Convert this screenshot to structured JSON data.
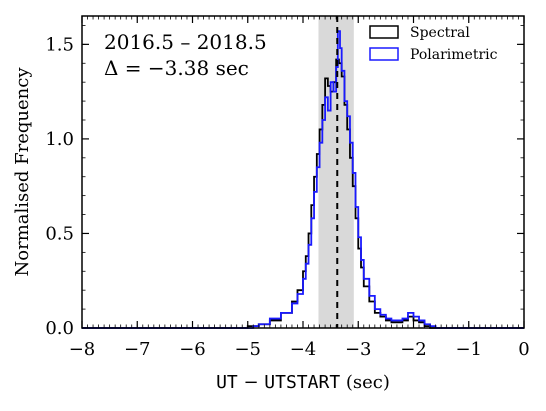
{
  "chart_data": {
    "type": "histogram",
    "xlabel_parts": [
      "UT",
      " − ",
      "UTSTART",
      " (sec)"
    ],
    "ylabel": "Normalised Frequency",
    "xlim": [
      -8,
      0
    ],
    "ylim": [
      0,
      1.65
    ],
    "x_ticks": [
      -8,
      -7,
      -6,
      -5,
      -4,
      -3,
      -2,
      -1,
      0
    ],
    "x_tick_labels": [
      "−8",
      "−7",
      "−6",
      "−5",
      "−4",
      "−3",
      "−2",
      "−1",
      "0"
    ],
    "y_ticks": [
      0.0,
      0.5,
      1.0,
      1.5
    ],
    "y_tick_labels": [
      "0.0",
      "0.5",
      "1.0",
      "1.5"
    ],
    "annotations": {
      "date_range": "2016.5 – 2018.5",
      "delta": "Δ = −3.38 sec"
    },
    "median_line_x": -3.38,
    "shaded_band": [
      -3.72,
      -3.08
    ],
    "legend_position": "top-right",
    "legend": [
      {
        "name": "Spectral",
        "color": "#000000"
      },
      {
        "name": "Polarimetric",
        "color": "#1a1aff"
      }
    ],
    "series": [
      {
        "name": "Spectral",
        "color": "#000000",
        "points": [
          [
            -8.0,
            0.0
          ],
          [
            -5.2,
            0.0
          ],
          [
            -5.0,
            0.01
          ],
          [
            -4.8,
            0.02
          ],
          [
            -4.6,
            0.04
          ],
          [
            -4.4,
            0.08
          ],
          [
            -4.2,
            0.14
          ],
          [
            -4.1,
            0.2
          ],
          [
            -4.0,
            0.3
          ],
          [
            -3.95,
            0.38
          ],
          [
            -3.9,
            0.5
          ],
          [
            -3.85,
            0.65
          ],
          [
            -3.8,
            0.8
          ],
          [
            -3.75,
            0.92
          ],
          [
            -3.7,
            1.05
          ],
          [
            -3.65,
            1.18
          ],
          [
            -3.6,
            1.32
          ],
          [
            -3.55,
            1.28
          ],
          [
            -3.5,
            1.25
          ],
          [
            -3.45,
            1.3
          ],
          [
            -3.4,
            1.42
          ],
          [
            -3.35,
            1.4
          ],
          [
            -3.3,
            1.33
          ],
          [
            -3.25,
            1.18
          ],
          [
            -3.2,
            1.05
          ],
          [
            -3.15,
            0.9
          ],
          [
            -3.1,
            0.75
          ],
          [
            -3.05,
            0.58
          ],
          [
            -3.0,
            0.42
          ],
          [
            -2.95,
            0.32
          ],
          [
            -2.9,
            0.22
          ],
          [
            -2.8,
            0.14
          ],
          [
            -2.7,
            0.08
          ],
          [
            -2.6,
            0.06
          ],
          [
            -2.5,
            0.04
          ],
          [
            -2.4,
            0.03
          ],
          [
            -2.2,
            0.04
          ],
          [
            -2.1,
            0.06
          ],
          [
            -2.0,
            0.04
          ],
          [
            -1.9,
            0.03
          ],
          [
            -1.8,
            0.01
          ],
          [
            -1.7,
            0.0
          ],
          [
            0.0,
            0.0
          ]
        ]
      },
      {
        "name": "Polarimetric",
        "color": "#1a1aff",
        "points": [
          [
            -8.0,
            0.0
          ],
          [
            -5.0,
            0.0
          ],
          [
            -4.9,
            0.01
          ],
          [
            -4.8,
            0.02
          ],
          [
            -4.6,
            0.05
          ],
          [
            -4.4,
            0.08
          ],
          [
            -4.2,
            0.13
          ],
          [
            -4.1,
            0.18
          ],
          [
            -4.0,
            0.26
          ],
          [
            -3.95,
            0.34
          ],
          [
            -3.9,
            0.44
          ],
          [
            -3.85,
            0.58
          ],
          [
            -3.8,
            0.72
          ],
          [
            -3.75,
            0.85
          ],
          [
            -3.7,
            0.98
          ],
          [
            -3.65,
            1.1
          ],
          [
            -3.6,
            1.22
          ],
          [
            -3.55,
            1.15
          ],
          [
            -3.5,
            1.3
          ],
          [
            -3.45,
            1.25
          ],
          [
            -3.4,
            1.38
          ],
          [
            -3.37,
            1.57
          ],
          [
            -3.33,
            1.48
          ],
          [
            -3.3,
            1.36
          ],
          [
            -3.25,
            1.2
          ],
          [
            -3.2,
            1.12
          ],
          [
            -3.15,
            0.98
          ],
          [
            -3.1,
            0.82
          ],
          [
            -3.05,
            0.64
          ],
          [
            -3.0,
            0.48
          ],
          [
            -2.95,
            0.36
          ],
          [
            -2.9,
            0.26
          ],
          [
            -2.8,
            0.17
          ],
          [
            -2.7,
            0.1
          ],
          [
            -2.6,
            0.07
          ],
          [
            -2.5,
            0.05
          ],
          [
            -2.4,
            0.04
          ],
          [
            -2.2,
            0.05
          ],
          [
            -2.1,
            0.08
          ],
          [
            -2.0,
            0.06
          ],
          [
            -1.9,
            0.04
          ],
          [
            -1.8,
            0.02
          ],
          [
            -1.7,
            0.01
          ],
          [
            -1.6,
            0.0
          ],
          [
            0.0,
            0.0
          ]
        ]
      }
    ]
  }
}
